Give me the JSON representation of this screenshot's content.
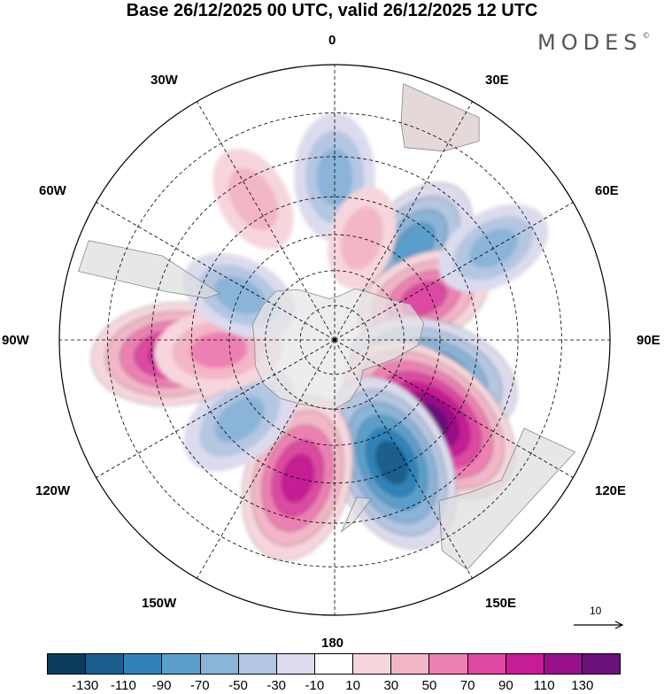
{
  "title": "Base 26/12/2025 00 UTC, valid 26/12/2025 12 UTC",
  "brand": {
    "name": "MODES",
    "mark": "©"
  },
  "longitude_labels": {
    "n0": "0",
    "n30e": "30E",
    "n60e": "60E",
    "n90e": "90E",
    "n120e": "120E",
    "n150e": "150E",
    "n180": "180",
    "n150w": "150W",
    "n120w": "120W",
    "n90w": "90W",
    "n60w": "60W",
    "n30w": "30W"
  },
  "reference_vector": {
    "label": "10"
  },
  "colorbar": {
    "colors": [
      "#0d3d5c",
      "#1b5f8e",
      "#2f83b8",
      "#5a9fcb",
      "#8ab4d8",
      "#b3c6e2",
      "#dcdbee",
      "#ffffff",
      "#f6d6dc",
      "#f2b6c7",
      "#ed80b2",
      "#dd48a3",
      "#c61c94",
      "#97108a",
      "#6a0f7b"
    ],
    "ticks": [
      "-130",
      "-110",
      "-90",
      "-70",
      "-50",
      "-30",
      "-10",
      "10",
      "30",
      "50",
      "70",
      "90",
      "110",
      "130"
    ]
  },
  "chart_data": {
    "type": "heatmap",
    "title": "Base 26/12/2025 00 UTC, valid 26/12/2025 12 UTC",
    "projection": "south-polar-stereographic",
    "value_range": [
      -130,
      130
    ],
    "anomaly_centers": [
      {
        "lon": 0,
        "lat": -45,
        "value": -45
      },
      {
        "lon": 40,
        "lat": -55,
        "value": -60
      },
      {
        "lon": 65,
        "lat": -62,
        "value": 55
      },
      {
        "lon": 110,
        "lat": -60,
        "value": -90
      },
      {
        "lon": 130,
        "lat": -55,
        "value": 115
      },
      {
        "lon": 155,
        "lat": -52,
        "value": -100
      },
      {
        "lon": -165,
        "lat": -50,
        "value": 85
      },
      {
        "lon": -130,
        "lat": -55,
        "value": -45
      },
      {
        "lon": -95,
        "lat": -45,
        "value": 80
      },
      {
        "lon": -95,
        "lat": -57,
        "value": 45
      },
      {
        "lon": -65,
        "lat": -60,
        "value": -35
      },
      {
        "lon": -30,
        "lat": -45,
        "value": 25
      },
      {
        "lon": 60,
        "lat": -40,
        "value": -35
      },
      {
        "lon": 15,
        "lat": -60,
        "value": 20
      }
    ]
  }
}
